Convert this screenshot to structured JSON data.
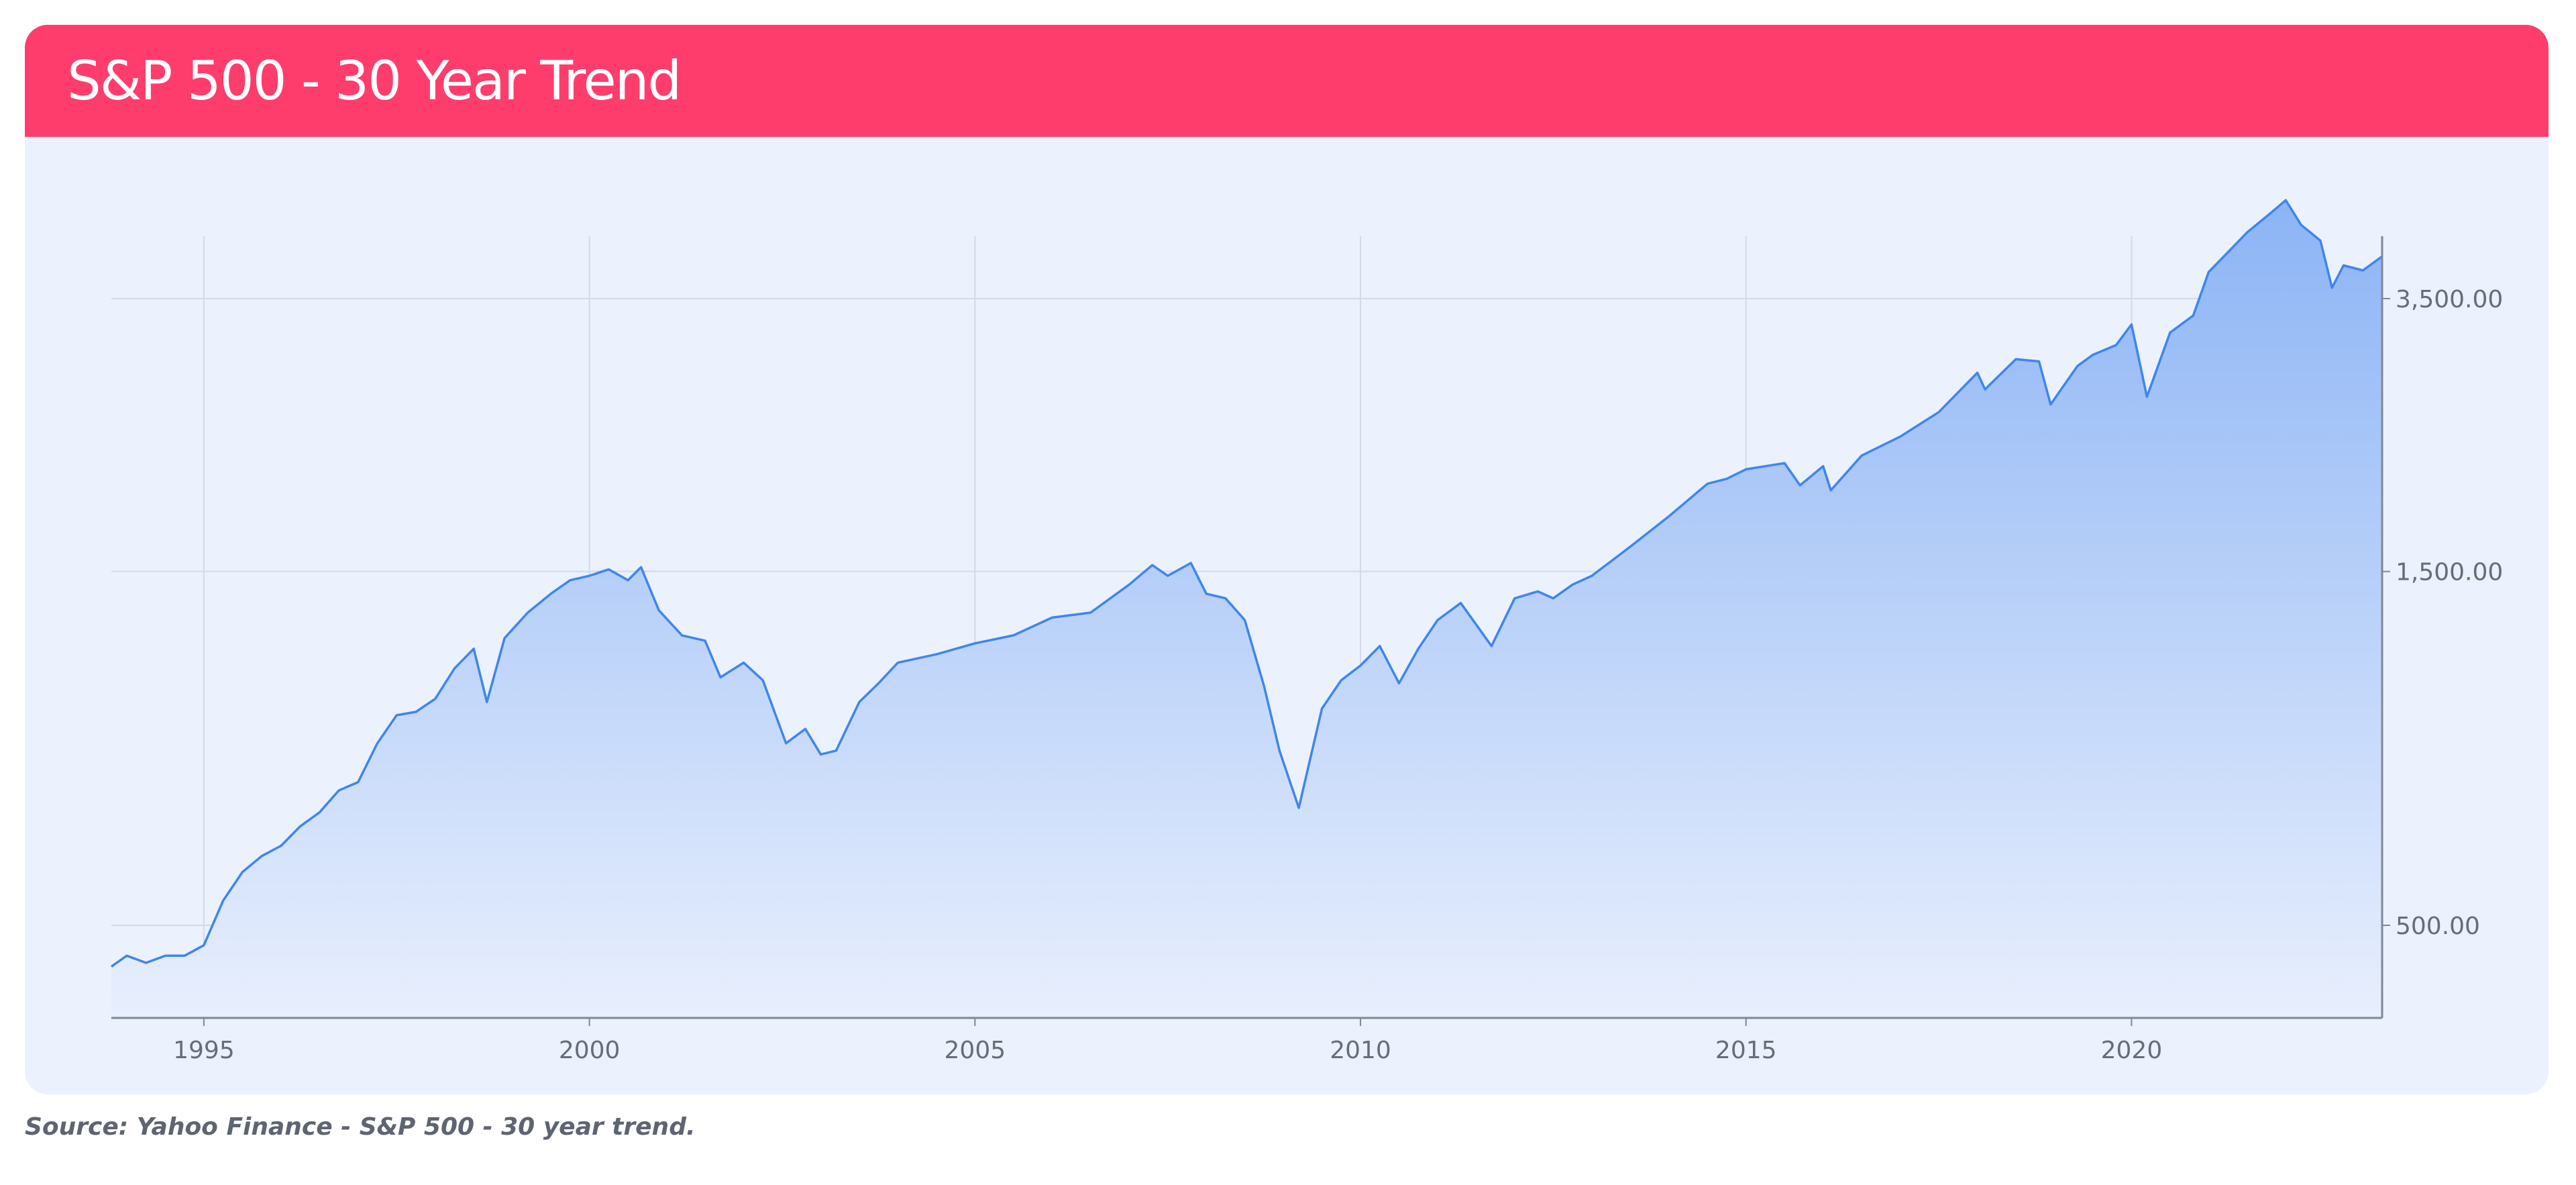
{
  "card": {
    "title": "S&P 500 - 30 Year Trend"
  },
  "source_note": "Source: Yahoo Finance - S&P 500 - 30 year trend.",
  "colors": {
    "header": "#ff3d6c",
    "card_background": "#ebf1fd",
    "line": "#3f86ec",
    "area_top": "#8cb4f5",
    "area_bottom": "#e8effd",
    "gridline": "#d3dae8",
    "axis": "#7f8798"
  },
  "chart_data": {
    "type": "area",
    "title": "",
    "xlabel": "",
    "ylabel": "",
    "y_scale": "log",
    "y_axis_position": "right",
    "grid": true,
    "legend": "none",
    "xlim": [
      1993.8,
      2023.25
    ],
    "ylim": [
      290,
      5200
    ],
    "x_ticks": [
      {
        "value": 1995,
        "label": "1995"
      },
      {
        "value": 2000,
        "label": "2000"
      },
      {
        "value": 2005,
        "label": "2005"
      },
      {
        "value": 2010,
        "label": "2010"
      },
      {
        "value": 2015,
        "label": "2015"
      },
      {
        "value": 2020,
        "label": "2020"
      }
    ],
    "y_ticks": [
      {
        "value": 500,
        "label": "500.00"
      },
      {
        "value": 1500,
        "label": "1,500.00"
      },
      {
        "value": 3500,
        "label": "3,500.00"
      }
    ],
    "series": [
      {
        "x": [
          1993.8,
          1994.0,
          1994.25,
          1994.5,
          1994.75,
          1995.0,
          1995.25,
          1995.5,
          1995.75,
          1996.0,
          1996.25,
          1996.5,
          1996.75,
          1997.0,
          1997.25,
          1997.5,
          1997.75,
          1998.0,
          1998.25,
          1998.5,
          1998.67,
          1998.9,
          1999.2,
          1999.5,
          1999.75,
          2000.0,
          2000.25,
          2000.5,
          2000.67,
          2000.9,
          2001.2,
          2001.5,
          2001.7,
          2002.0,
          2002.25,
          2002.55,
          2002.8,
          2003.0,
          2003.2,
          2003.5,
          2003.75,
          2004.0,
          2004.5,
          2005.0,
          2005.5,
          2006.0,
          2006.5,
          2007.0,
          2007.3,
          2007.5,
          2007.8,
          2008.0,
          2008.25,
          2008.5,
          2008.75,
          2008.95,
          2009.2,
          2009.5,
          2009.75,
          2010.0,
          2010.25,
          2010.5,
          2010.75,
          2011.0,
          2011.3,
          2011.7,
          2012.0,
          2012.3,
          2012.5,
          2012.75,
          2013.0,
          2013.5,
          2014.0,
          2014.5,
          2014.75,
          2015.0,
          2015.5,
          2015.7,
          2016.0,
          2016.1,
          2016.5,
          2017.0,
          2017.5,
          2018.0,
          2018.1,
          2018.5,
          2018.8,
          2018.95,
          2019.3,
          2019.5,
          2019.8,
          2020.0,
          2020.2,
          2020.5,
          2020.8,
          2021.0,
          2021.5,
          2021.8,
          2022.0,
          2022.2,
          2022.45,
          2022.6,
          2022.75,
          2023.0,
          2023.25
        ],
        "values": [
          440,
          455,
          445,
          455,
          455,
          470,
          540,
          590,
          620,
          640,
          680,
          710,
          760,
          780,
          880,
          960,
          970,
          1010,
          1110,
          1180,
          1000,
          1220,
          1320,
          1400,
          1460,
          1480,
          1510,
          1460,
          1520,
          1330,
          1230,
          1210,
          1080,
          1130,
          1070,
          880,
          920,
          850,
          860,
          1000,
          1060,
          1130,
          1160,
          1200,
          1230,
          1300,
          1320,
          1440,
          1530,
          1480,
          1540,
          1400,
          1380,
          1290,
          1050,
          860,
          720,
          980,
          1070,
          1120,
          1190,
          1060,
          1180,
          1290,
          1360,
          1190,
          1380,
          1410,
          1380,
          1440,
          1480,
          1620,
          1780,
          1970,
          2000,
          2060,
          2100,
          1960,
          2080,
          1930,
          2150,
          2280,
          2460,
          2780,
          2640,
          2900,
          2880,
          2520,
          2840,
          2940,
          3030,
          3230,
          2580,
          3150,
          3320,
          3800,
          4300,
          4560,
          4750,
          4400,
          4190,
          3620,
          3880,
          3820,
          3990
        ]
      }
    ]
  }
}
